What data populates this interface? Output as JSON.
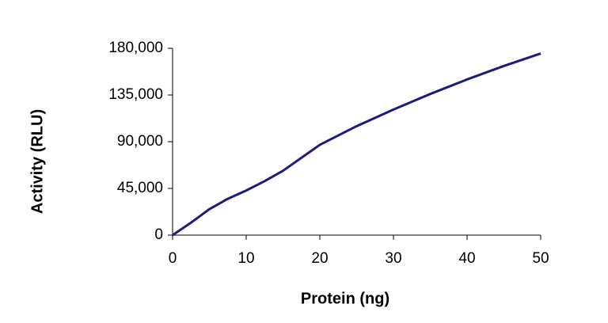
{
  "chart_data": {
    "type": "line",
    "x_label": "Protein (ng)",
    "y_label": "Activity (RLU)",
    "x": [
      0,
      2.5,
      5,
      7.5,
      10,
      12.5,
      15,
      20,
      25,
      30,
      35,
      40,
      45,
      50
    ],
    "series": [
      {
        "name": "Activity",
        "color": "#1c1c7c",
        "values": [
          0,
          12000,
          25000,
          35000,
          43000,
          52000,
          62000,
          87000,
          105000,
          121000,
          136000,
          150000,
          163000,
          175000
        ]
      }
    ],
    "xlim": [
      0,
      50
    ],
    "xticks": [
      0,
      10,
      20,
      30,
      40,
      50
    ],
    "ylim": [
      0,
      180000
    ],
    "yticks": [
      0,
      {
        "value": 45000,
        "label": "45,000"
      },
      {
        "value": 90000,
        "label": "90,000"
      },
      {
        "value": 135000,
        "label": "135,000"
      },
      {
        "value": 180000,
        "label": "180,000"
      }
    ]
  }
}
